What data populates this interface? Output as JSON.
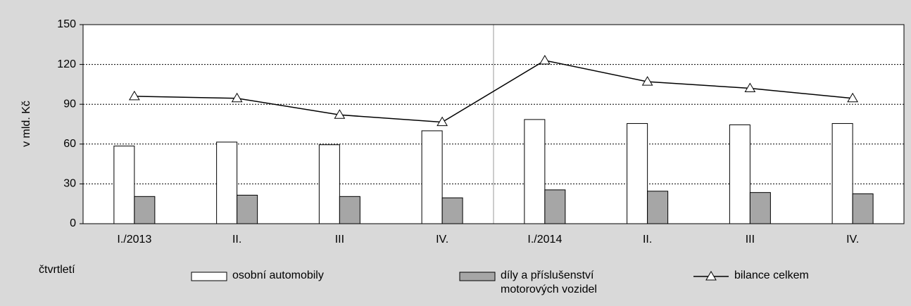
{
  "chart_data": {
    "type": "bar_line",
    "y_label": "v mld. Kč",
    "x_label": "čtvrtletí",
    "categories": [
      "I./2013",
      "II.",
      "III",
      "IV.",
      "I./2014",
      "II.",
      "III",
      "IV."
    ],
    "series": [
      {
        "name": "osobní automobily",
        "type": "bar",
        "color": "#ffffff",
        "values": [
          58.5,
          61.5,
          59.5,
          70,
          78.5,
          75.5,
          74.5,
          75.5
        ]
      },
      {
        "name": "díly a příslušenství motorových vozidel",
        "type": "bar",
        "color": "#a6a6a6",
        "values": [
          20.5,
          21.5,
          20.5,
          19.5,
          25.5,
          24.5,
          23.5,
          22.5
        ]
      },
      {
        "name": "bilance celkem",
        "type": "line",
        "color": "#000000",
        "values": [
          96,
          94.5,
          82,
          76.5,
          123,
          107,
          102,
          94.5
        ]
      }
    ],
    "ylim": [
      0,
      150
    ],
    "yticks": [
      0,
      30,
      60,
      90,
      120,
      150
    ],
    "grid": true
  }
}
